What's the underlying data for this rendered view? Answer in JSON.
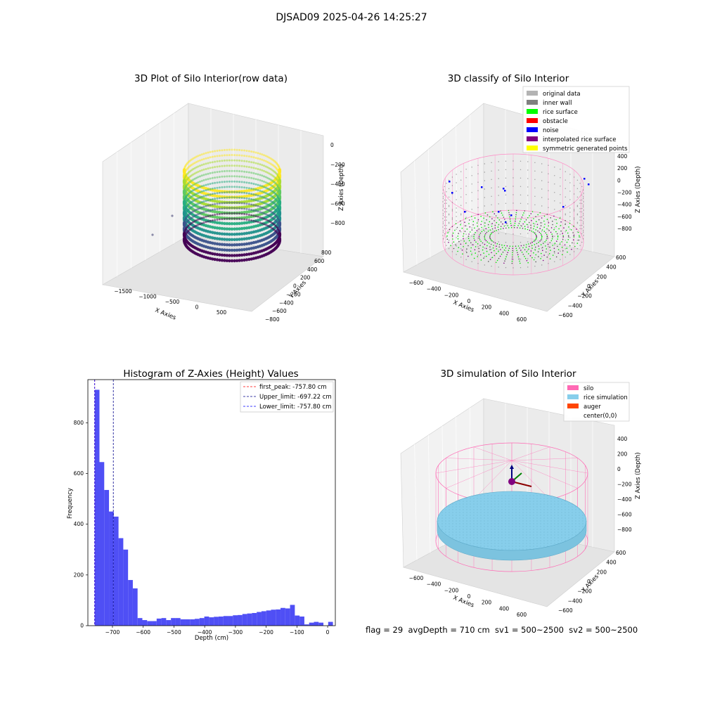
{
  "suptitle": "DJSAD09 2025-04-26 14:25:27",
  "footer": "flag = 29  avgDepth = 710 cm  sv1 = 500~2500  sv2 = 500~2500",
  "chart_data": [
    {
      "type": "scatter3d",
      "title": "3D Plot of Silo Interior(row data)",
      "xlabel": "X Axies",
      "ylabel": "Y Axies",
      "zlabel": "Z Axies (Depth)",
      "x_ticks": [
        "−1500",
        "−1000",
        "−500",
        "0",
        "500"
      ],
      "y_ticks": [
        "−800",
        "−600",
        "−400",
        "−200",
        "0",
        "200",
        "400",
        "600",
        "800"
      ],
      "z_ticks": [
        "0",
        "−200",
        "−400",
        "−600",
        "−800"
      ],
      "colormap": "viridis"
    },
    {
      "type": "scatter3d",
      "title": "3D classify of Silo Interior",
      "xlabel": "X Axies",
      "ylabel": "Y Axies",
      "zlabel": "Z Axies (Depth)",
      "x_ticks": [
        "−600",
        "−400",
        "−200",
        "0",
        "200",
        "400",
        "600"
      ],
      "y_ticks": [
        "−600",
        "−400",
        "−200",
        "0",
        "200",
        "400",
        "600"
      ],
      "z_ticks": [
        "400",
        "200",
        "0",
        "−200",
        "−400",
        "−600",
        "−800"
      ],
      "legend": [
        {
          "label": "original data",
          "color": "#b3b3b3"
        },
        {
          "label": "inner wall",
          "color": "#808080"
        },
        {
          "label": "rice surface",
          "color": "#00ff00"
        },
        {
          "label": "obstacle",
          "color": "#ff0000"
        },
        {
          "label": "noise",
          "color": "#0000ff"
        },
        {
          "label": "interpolated rice surface",
          "color": "#800080"
        },
        {
          "label": "symmetric generated points",
          "color": "#ffff00"
        }
      ]
    },
    {
      "type": "bar",
      "title": "Histogram of Z-Axies (Height) Values",
      "xlabel": "Depth (cm)",
      "ylabel": "Frequency",
      "xlim": [
        -780,
        25
      ],
      "ylim": [
        0,
        970
      ],
      "x_ticks": [
        {
          "v": -700,
          "label": "−700"
        },
        {
          "v": -600,
          "label": "−600"
        },
        {
          "v": -500,
          "label": "−500"
        },
        {
          "v": -400,
          "label": "−400"
        },
        {
          "v": -300,
          "label": "−300"
        },
        {
          "v": -200,
          "label": "−200"
        },
        {
          "v": -100,
          "label": "−100"
        },
        {
          "v": 0,
          "label": "0"
        }
      ],
      "y_ticks": [
        0,
        200,
        400,
        600,
        800
      ],
      "bar_color": "#4f4ff5",
      "bin_start": -757.8,
      "bin_width": 15.5,
      "values": [
        930,
        645,
        535,
        450,
        430,
        345,
        300,
        180,
        147,
        30,
        22,
        18,
        18,
        28,
        30,
        22,
        30,
        30,
        25,
        25,
        25,
        27,
        30,
        36,
        33,
        35,
        36,
        38,
        38,
        41,
        42,
        46,
        48,
        50,
        54,
        57,
        60,
        63,
        64,
        70,
        68,
        82,
        40,
        36,
        5,
        12,
        15,
        12,
        0,
        15
      ],
      "vlines": [
        {
          "label": "first_peak: -757.80 cm",
          "x": -757.8,
          "color": "#ff0000"
        },
        {
          "label": "Upper_limit: -697.22 cm",
          "x": -697.22,
          "color": "#00008b"
        },
        {
          "label": "Lower_limit: -757.80 cm",
          "x": -757.8,
          "color": "#0000ff"
        }
      ]
    },
    {
      "type": "surface3d",
      "title": "3D simulation of Silo Interior",
      "xlabel": "X Axies",
      "ylabel": "Y Axies",
      "zlabel": "Z Axies (Depth)",
      "x_ticks": [
        "−600",
        "−400",
        "−200",
        "0",
        "200",
        "400",
        "600"
      ],
      "y_ticks": [
        "−600",
        "−400",
        "−200",
        "0",
        "200",
        "400",
        "600"
      ],
      "z_ticks": [
        "400",
        "200",
        "0",
        "−200",
        "−400",
        "−600",
        "−800"
      ],
      "legend": [
        {
          "label": "silo",
          "color": "#ff69b4"
        },
        {
          "label": "rice simulation",
          "color": "#87ceeb"
        },
        {
          "label": "auger",
          "color": "#ff4500"
        },
        {
          "label": "center(0,0)",
          "color": "#ffffff"
        }
      ]
    }
  ]
}
